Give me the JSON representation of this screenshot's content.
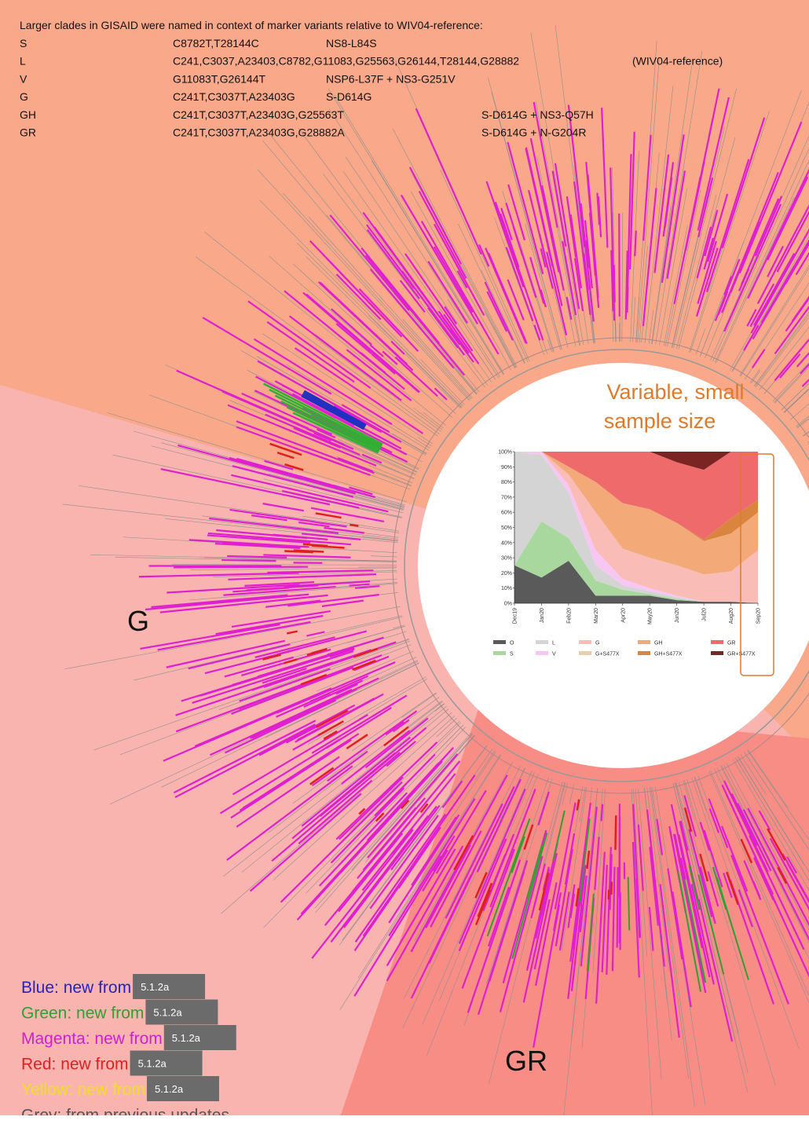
{
  "header": {
    "title": "Larger clades in GISAID were named in context of marker variants relative to WIV04-reference:",
    "rows": [
      [
        "S",
        "C8782T,T28144C",
        "NS8-L84S"
      ],
      [
        "L",
        "C241,C3037,A23403,C8782,G11083,G25563,G26144,T28144,G28882",
        "(WIV04-reference)"
      ],
      [
        "V",
        "G11083T,G26144T",
        "NSP6-L37F + NS3-G251V"
      ],
      [
        "G",
        "C241T,C3037T,A23403G",
        "S-D614G"
      ],
      [
        "GH",
        "C241T,C3037T,A23403G,G25563T",
        "S-D614G  + NS3-Q57H"
      ],
      [
        "GR",
        "C241T,C3037T,A23403G,G28882A",
        "S-D614G  + N-G204R"
      ]
    ]
  },
  "labels": {
    "clade_g": "G",
    "clade_gr": "GR",
    "note_line1": "Variable, small",
    "note_line2": "sample size"
  },
  "legend": [
    {
      "text": "Blue: new from",
      "tag": "5.1.2a"
    },
    {
      "text": "Green: new from",
      "tag": "5.1.2a"
    },
    {
      "text": "Magenta: new from",
      "tag": "5.1.2a"
    },
    {
      "text": "Red: new from",
      "tag": "5.1.2a"
    },
    {
      "text": "Yellow: new from",
      "tag": "5.1.2a"
    },
    {
      "text": "Grey: from previous updates"
    }
  ],
  "chart_data": {
    "type": "stacked_area",
    "categories": [
      "Dec19",
      "Jan20",
      "Feb20",
      "Mar20",
      "Apr20",
      "May20",
      "Jun20",
      "Jul20",
      "Aug20",
      "Sep20"
    ],
    "ylim": [
      0,
      100
    ],
    "yticks": [
      {
        "value": 0,
        "label": "0%"
      },
      {
        "value": 10,
        "label": "10%"
      },
      {
        "value": 20,
        "label": "20%"
      },
      {
        "value": 30,
        "label": "30%"
      },
      {
        "value": 40,
        "label": "40%"
      },
      {
        "value": 50,
        "label": "50%"
      },
      {
        "value": 60,
        "label": "60%"
      },
      {
        "value": 70,
        "label": "70%"
      },
      {
        "value": 80,
        "label": "80%"
      },
      {
        "value": 90,
        "label": "90%"
      },
      {
        "value": 100,
        "label": "100%"
      }
    ],
    "series": [
      {
        "name": "O",
        "color": "#5a5a5a",
        "values": [
          25,
          17,
          28,
          5,
          5,
          5,
          2,
          1,
          1,
          0
        ]
      },
      {
        "name": "S",
        "color": "#a9d89f",
        "values": [
          0,
          37,
          15,
          10,
          4,
          1,
          1,
          0,
          0,
          0
        ]
      },
      {
        "name": "L",
        "color": "#d4d4d4",
        "values": [
          75,
          44,
          30,
          10,
          3,
          2,
          1,
          0,
          0,
          0
        ]
      },
      {
        "name": "V",
        "color": "#f8c6f2",
        "values": [
          0,
          2,
          5,
          10,
          4,
          2,
          1,
          0,
          0,
          0
        ]
      },
      {
        "name": "G",
        "color": "#f9bcb6",
        "values": [
          0,
          0,
          7,
          25,
          20,
          20,
          20,
          18,
          20,
          35
        ]
      },
      {
        "name": "G+S477X",
        "color": "#e9cfb0",
        "values": [
          0,
          0,
          0,
          0,
          0,
          0,
          0,
          0,
          0,
          0
        ]
      },
      {
        "name": "GH",
        "color": "#f3aa78",
        "values": [
          0,
          0,
          5,
          20,
          30,
          32,
          28,
          22,
          25,
          25
        ]
      },
      {
        "name": "GH+S477X",
        "color": "#d9843f",
        "values": [
          0,
          0,
          0,
          0,
          0,
          0,
          0,
          1,
          10,
          8
        ]
      },
      {
        "name": "GR",
        "color": "#ef6b6b",
        "values": [
          0,
          0,
          10,
          20,
          34,
          38,
          40,
          46,
          44,
          32
        ]
      },
      {
        "name": "GR+S477X",
        "color": "#7a2424",
        "values": [
          0,
          0,
          0,
          0,
          0,
          0,
          7,
          12,
          0,
          0
        ]
      }
    ]
  }
}
